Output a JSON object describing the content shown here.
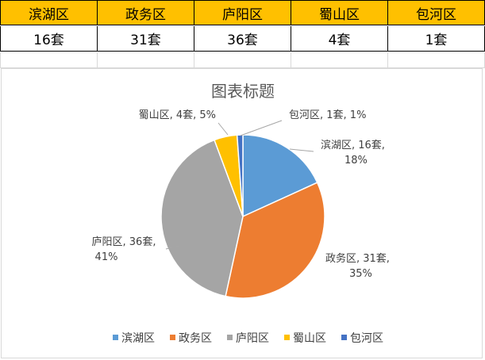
{
  "table": {
    "headers": [
      "滨湖区",
      "政务区",
      "庐阳区",
      "蜀山区",
      "包河区"
    ],
    "values": [
      "16套",
      "31套",
      "36套",
      "4套",
      "1套"
    ]
  },
  "chart_data": {
    "type": "pie",
    "title": "图表标题",
    "categories": [
      "滨湖区",
      "政务区",
      "庐阳区",
      "蜀山区",
      "包河区"
    ],
    "values": [
      16,
      31,
      36,
      4,
      1
    ],
    "unit": "套",
    "percent_labels": [
      "18%",
      "35%",
      "41%",
      "5%",
      "1%"
    ],
    "colors": [
      "#5b9bd5",
      "#ed7d31",
      "#a5a5a5",
      "#ffc000",
      "#4472c4"
    ],
    "legend_position": "bottom",
    "data_labels": [
      [
        "滨湖区, 16套,",
        "18%"
      ],
      [
        "政务区, 31套,",
        "35%"
      ],
      [
        "庐阳区, 36套,",
        "41%"
      ],
      [
        "蜀山区, 4套, 5%"
      ],
      [
        "包河区, 1套, 1%"
      ]
    ]
  }
}
